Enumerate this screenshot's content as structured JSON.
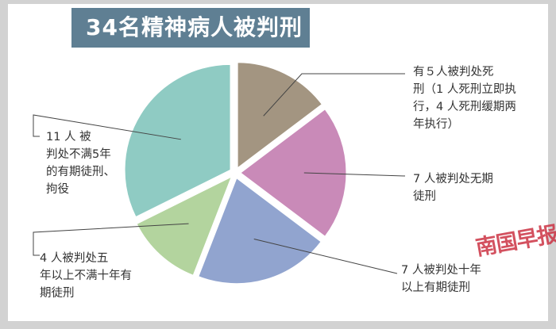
{
  "title": "34名精神病人被判刑",
  "colors": {
    "title_bar": "#5f7f93",
    "slices": [
      "#a39581",
      "#c98ab8",
      "#91a4cf",
      "#b3d49e",
      "#8fcbc3"
    ]
  },
  "chart_data": {
    "type": "pie",
    "title": "34名精神病人被判刑",
    "total": 34,
    "slices": [
      {
        "value": 5,
        "label_lines": [
          "有５人被判处死",
          "刑（1 人死刑立即执",
          "行，4 人死刑缓期两",
          "年执行）"
        ],
        "color": "#a39581"
      },
      {
        "value": 7,
        "label_lines": [
          "7 人被判处无期",
          "徒刑"
        ],
        "color": "#c98ab8"
      },
      {
        "value": 7,
        "label_lines": [
          "7 人被判处十年",
          "以上有期徒刑"
        ],
        "color": "#91a4cf"
      },
      {
        "value": 4,
        "label_lines": [
          "4 人被判处五",
          "年以上不满十年有",
          "期徒刑"
        ],
        "color": "#b3d49e"
      },
      {
        "value": 11,
        "label_lines": [
          "11 人 被",
          "判处不满5年",
          "的有期徒刑、",
          "拘役"
        ],
        "color": "#8fcbc3"
      }
    ]
  },
  "watermark": "南国早报"
}
